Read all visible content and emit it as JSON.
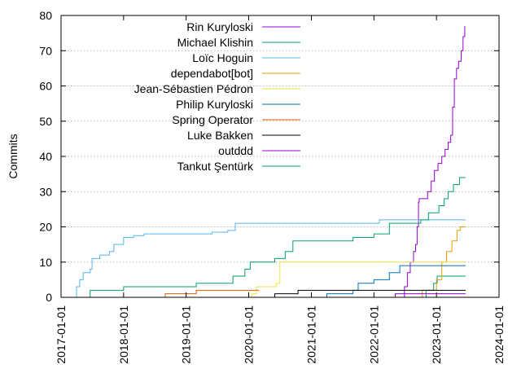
{
  "chart_data": {
    "type": "line",
    "title": "",
    "xlabel": "",
    "ylabel": "Commits",
    "x_range": [
      "2017-01-01",
      "2024-01-01"
    ],
    "ylim": [
      0,
      80
    ],
    "x_ticks": [
      "2017-01-01",
      "2018-01-01",
      "2019-01-01",
      "2020-01-01",
      "2021-01-01",
      "2022-01-01",
      "2023-01-01",
      "2024-01-01"
    ],
    "y_ticks": [
      0,
      10,
      20,
      30,
      40,
      50,
      60,
      70,
      80
    ],
    "grid": "horizontal dotted",
    "legend": "top-left",
    "series": [
      {
        "name": "Rin Kuryloski",
        "color": "#9400d3",
        "points": [
          [
            "2022-06-20",
            0
          ],
          [
            "2022-06-28",
            3
          ],
          [
            "2022-07-15",
            7
          ],
          [
            "2022-08-01",
            10
          ],
          [
            "2022-08-20",
            13
          ],
          [
            "2022-09-01",
            15
          ],
          [
            "2022-09-10",
            20
          ],
          [
            "2022-09-18",
            27
          ],
          [
            "2022-09-22",
            28
          ],
          [
            "2022-11-10",
            30
          ],
          [
            "2022-12-01",
            33
          ],
          [
            "2022-12-20",
            36
          ],
          [
            "2023-01-10",
            38
          ],
          [
            "2023-02-01",
            40
          ],
          [
            "2023-02-20",
            42
          ],
          [
            "2023-03-10",
            44
          ],
          [
            "2023-03-25",
            46
          ],
          [
            "2023-04-05",
            54
          ],
          [
            "2023-04-15",
            62
          ],
          [
            "2023-04-28",
            65
          ],
          [
            "2023-05-10",
            67
          ],
          [
            "2023-05-25",
            70
          ],
          [
            "2023-06-05",
            74
          ],
          [
            "2023-06-15",
            77
          ]
        ]
      },
      {
        "name": "Michael Klishin",
        "color": "#009e73",
        "points": [
          [
            "2022-10-05",
            0
          ],
          [
            "2022-11-01",
            2
          ],
          [
            "2022-12-15",
            4
          ],
          [
            "2023-01-05",
            6
          ],
          [
            "2023-06-20",
            6
          ]
        ]
      },
      {
        "name": "Loïc Hoguin",
        "color": "#56b4e9",
        "points": [
          [
            "2017-03-20",
            0
          ],
          [
            "2017-04-01",
            3
          ],
          [
            "2017-04-20",
            5
          ],
          [
            "2017-05-10",
            7
          ],
          [
            "2017-06-20",
            8
          ],
          [
            "2017-07-01",
            11
          ],
          [
            "2017-08-15",
            12
          ],
          [
            "2017-10-10",
            13
          ],
          [
            "2017-11-05",
            15
          ],
          [
            "2018-01-01",
            17
          ],
          [
            "2018-03-01",
            17.5
          ],
          [
            "2018-05-01",
            18
          ],
          [
            "2019-03-01",
            18
          ],
          [
            "2019-06-01",
            18.5
          ],
          [
            "2019-09-01",
            19
          ],
          [
            "2019-10-15",
            21
          ],
          [
            "2022-01-20",
            21
          ],
          [
            "2022-02-01",
            22
          ],
          [
            "2023-06-20",
            22
          ]
        ]
      },
      {
        "name": "dependabot[bot]",
        "color": "#e69f00",
        "points": [
          [
            "2022-09-25",
            0
          ],
          [
            "2022-10-10",
            2
          ],
          [
            "2023-01-01",
            5
          ],
          [
            "2023-02-01",
            10
          ],
          [
            "2023-03-01",
            13
          ],
          [
            "2023-04-01",
            16
          ],
          [
            "2023-05-01",
            19
          ],
          [
            "2023-05-20",
            20
          ],
          [
            "2023-06-20",
            20
          ]
        ]
      },
      {
        "name": "Jean-Sébastien Pédron",
        "color": "#f0e442",
        "points": [
          [
            "2020-01-01",
            0
          ],
          [
            "2020-01-20",
            1
          ],
          [
            "2020-02-15",
            3
          ],
          [
            "2020-06-10",
            4
          ],
          [
            "2020-07-01",
            10
          ],
          [
            "2023-06-20",
            10
          ]
        ]
      },
      {
        "name": "Philip Kuryloski",
        "color": "#0072b2",
        "points": [
          [
            "2020-09-01",
            0
          ],
          [
            "2021-04-01",
            1
          ],
          [
            "2021-09-01",
            2
          ],
          [
            "2021-10-01",
            4
          ],
          [
            "2022-01-01",
            5
          ],
          [
            "2022-04-01",
            7
          ],
          [
            "2022-06-01",
            9
          ],
          [
            "2023-06-20",
            9
          ]
        ]
      },
      {
        "name": "Spring Operator",
        "color": "#d55e00",
        "points": [
          [
            "2018-05-01",
            0
          ],
          [
            "2018-09-01",
            1
          ],
          [
            "2019-03-01",
            2
          ],
          [
            "2020-03-01",
            2
          ]
        ]
      },
      {
        "name": "Luke Bakken",
        "color": "#000000",
        "points": [
          [
            "2019-09-01",
            0
          ],
          [
            "2020-06-01",
            1
          ],
          [
            "2020-10-15",
            2
          ],
          [
            "2023-06-20",
            2
          ]
        ]
      },
      {
        "name": "outddd",
        "color": "#9400d3",
        "points": [
          [
            "2022-05-01",
            0
          ],
          [
            "2022-05-05",
            1
          ],
          [
            "2023-06-20",
            1
          ]
        ]
      },
      {
        "name": "Tankut Şentürk",
        "color": "#009e73",
        "points": [
          [
            "2017-06-10",
            0
          ],
          [
            "2017-06-20",
            2
          ],
          [
            "2018-01-01",
            3
          ],
          [
            "2019-03-01",
            4
          ],
          [
            "2019-10-01",
            6
          ],
          [
            "2019-12-10",
            8
          ],
          [
            "2020-01-10",
            10
          ],
          [
            "2020-06-01",
            11
          ],
          [
            "2020-08-01",
            13
          ],
          [
            "2020-09-15",
            16
          ],
          [
            "2021-09-01",
            17
          ],
          [
            "2022-01-01",
            18
          ],
          [
            "2022-03-15",
            18
          ],
          [
            "2022-04-01",
            21
          ],
          [
            "2022-10-01",
            22
          ],
          [
            "2022-11-15",
            24
          ],
          [
            "2023-01-15",
            26
          ],
          [
            "2023-02-15",
            28
          ],
          [
            "2023-03-10",
            30
          ],
          [
            "2023-04-10",
            32
          ],
          [
            "2023-05-15",
            34
          ],
          [
            "2023-06-20",
            34
          ]
        ]
      }
    ]
  }
}
